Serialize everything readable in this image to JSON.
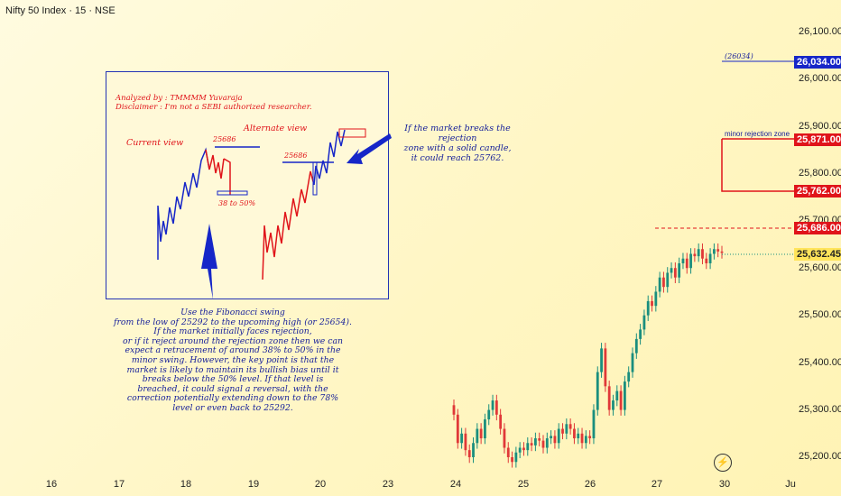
{
  "header": {
    "title": "Nifty 50 Index · 15 · NSE"
  },
  "colors": {
    "up": "#1a8e7e",
    "down": "#e03838",
    "blue": "#1626c8",
    "red": "#e0141a"
  },
  "chart_data": {
    "type": "candlestick",
    "y_ticks": [
      "26,100.00",
      "26,000.00",
      "25,900.00",
      "25,800.00",
      "25,700.00",
      "25,600.00",
      "25,500.00",
      "25,400.00",
      "25,300.00",
      "25,200.00"
    ],
    "x_ticks": [
      "16",
      "17",
      "18",
      "19",
      "20",
      "23",
      "24",
      "25",
      "26",
      "27",
      "30",
      "Ju"
    ],
    "price_labels": [
      {
        "id": "tag-26034",
        "text": "26,034.00",
        "color": "#1626c8"
      },
      {
        "id": "tag-25871",
        "text": "25,871.00",
        "color": "#e0141a"
      },
      {
        "id": "tag-25762",
        "text": "25,762.00",
        "color": "#e0141a"
      },
      {
        "id": "tag-25686",
        "text": "25,686.00",
        "color": "#e0141a"
      },
      {
        "id": "tag-25632",
        "text": "25,632.45",
        "color": "#ffe45a"
      }
    ],
    "levels": {
      "target_26034": 26034,
      "rejection_top": 25871,
      "rejection_bottom": 25762,
      "dashed_25686": 25686,
      "last": 25632.45
    },
    "annotations": {
      "target_label": "(26034)",
      "rejection_label": "minor rejection zone"
    },
    "candles_close": [
      25290,
      25230,
      25250,
      25215,
      25200,
      25230,
      25260,
      25240,
      25280,
      25300,
      25320,
      25290,
      25260,
      25220,
      25200,
      25190,
      25210,
      25220,
      25215,
      25230,
      25225,
      25240,
      25235,
      25220,
      25240,
      25245,
      25230,
      25260,
      25250,
      25270,
      25260,
      25240,
      25250,
      25230,
      25245,
      25240,
      25300,
      25380,
      25430,
      25350,
      25300,
      25320,
      25340,
      25300,
      25360,
      25380,
      25420,
      25450,
      25470,
      25500,
      25530,
      25520,
      25550,
      25580,
      25560,
      25590,
      25600,
      25580,
      25610,
      25620,
      25600,
      25630,
      25625,
      25640,
      25620,
      25610,
      25630,
      25640,
      25635,
      25632
    ]
  },
  "inset": {
    "analyzed_by": "Analyzed by : TMMMM Yuvaraja",
    "disclaimer": "Disclaimer : I'm not a SEBI authorized researcher.",
    "current_view": "Current view",
    "alternate_view": "Alternate view",
    "level_current": "25686",
    "level_alternate": "25686",
    "retrace": "38 to 50%"
  },
  "notes": {
    "breakout": [
      "If the market breaks the rejection",
      "zone with a solid candle,",
      "it could reach 25762."
    ],
    "fibonacci": [
      "Use the Fibonacci swing",
      "from the low of 25292 to the upcoming high (or 25654).",
      "If the market initially faces rejection,",
      "or if it reject around the rejection zone then we can",
      "expect a retracement of around 38% to 50% in the",
      "minor swing. However, the key point is that the",
      "market is likely to maintain its bullish bias until it",
      "breaks below the 50% level. If that level is",
      "breached, it could signal a reversal, with the",
      "correction potentially extending down to the 78%",
      "level or even back to 25292."
    ]
  }
}
